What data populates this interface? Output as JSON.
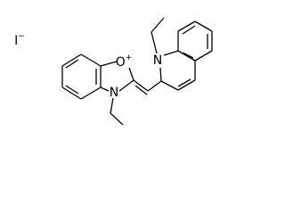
{
  "counterion": {
    "symbol": "I",
    "charge": "−"
  },
  "atoms": [
    {
      "symbol": "O",
      "charge": "+"
    },
    {
      "symbol": "N"
    },
    {
      "symbol": "N"
    }
  ]
}
